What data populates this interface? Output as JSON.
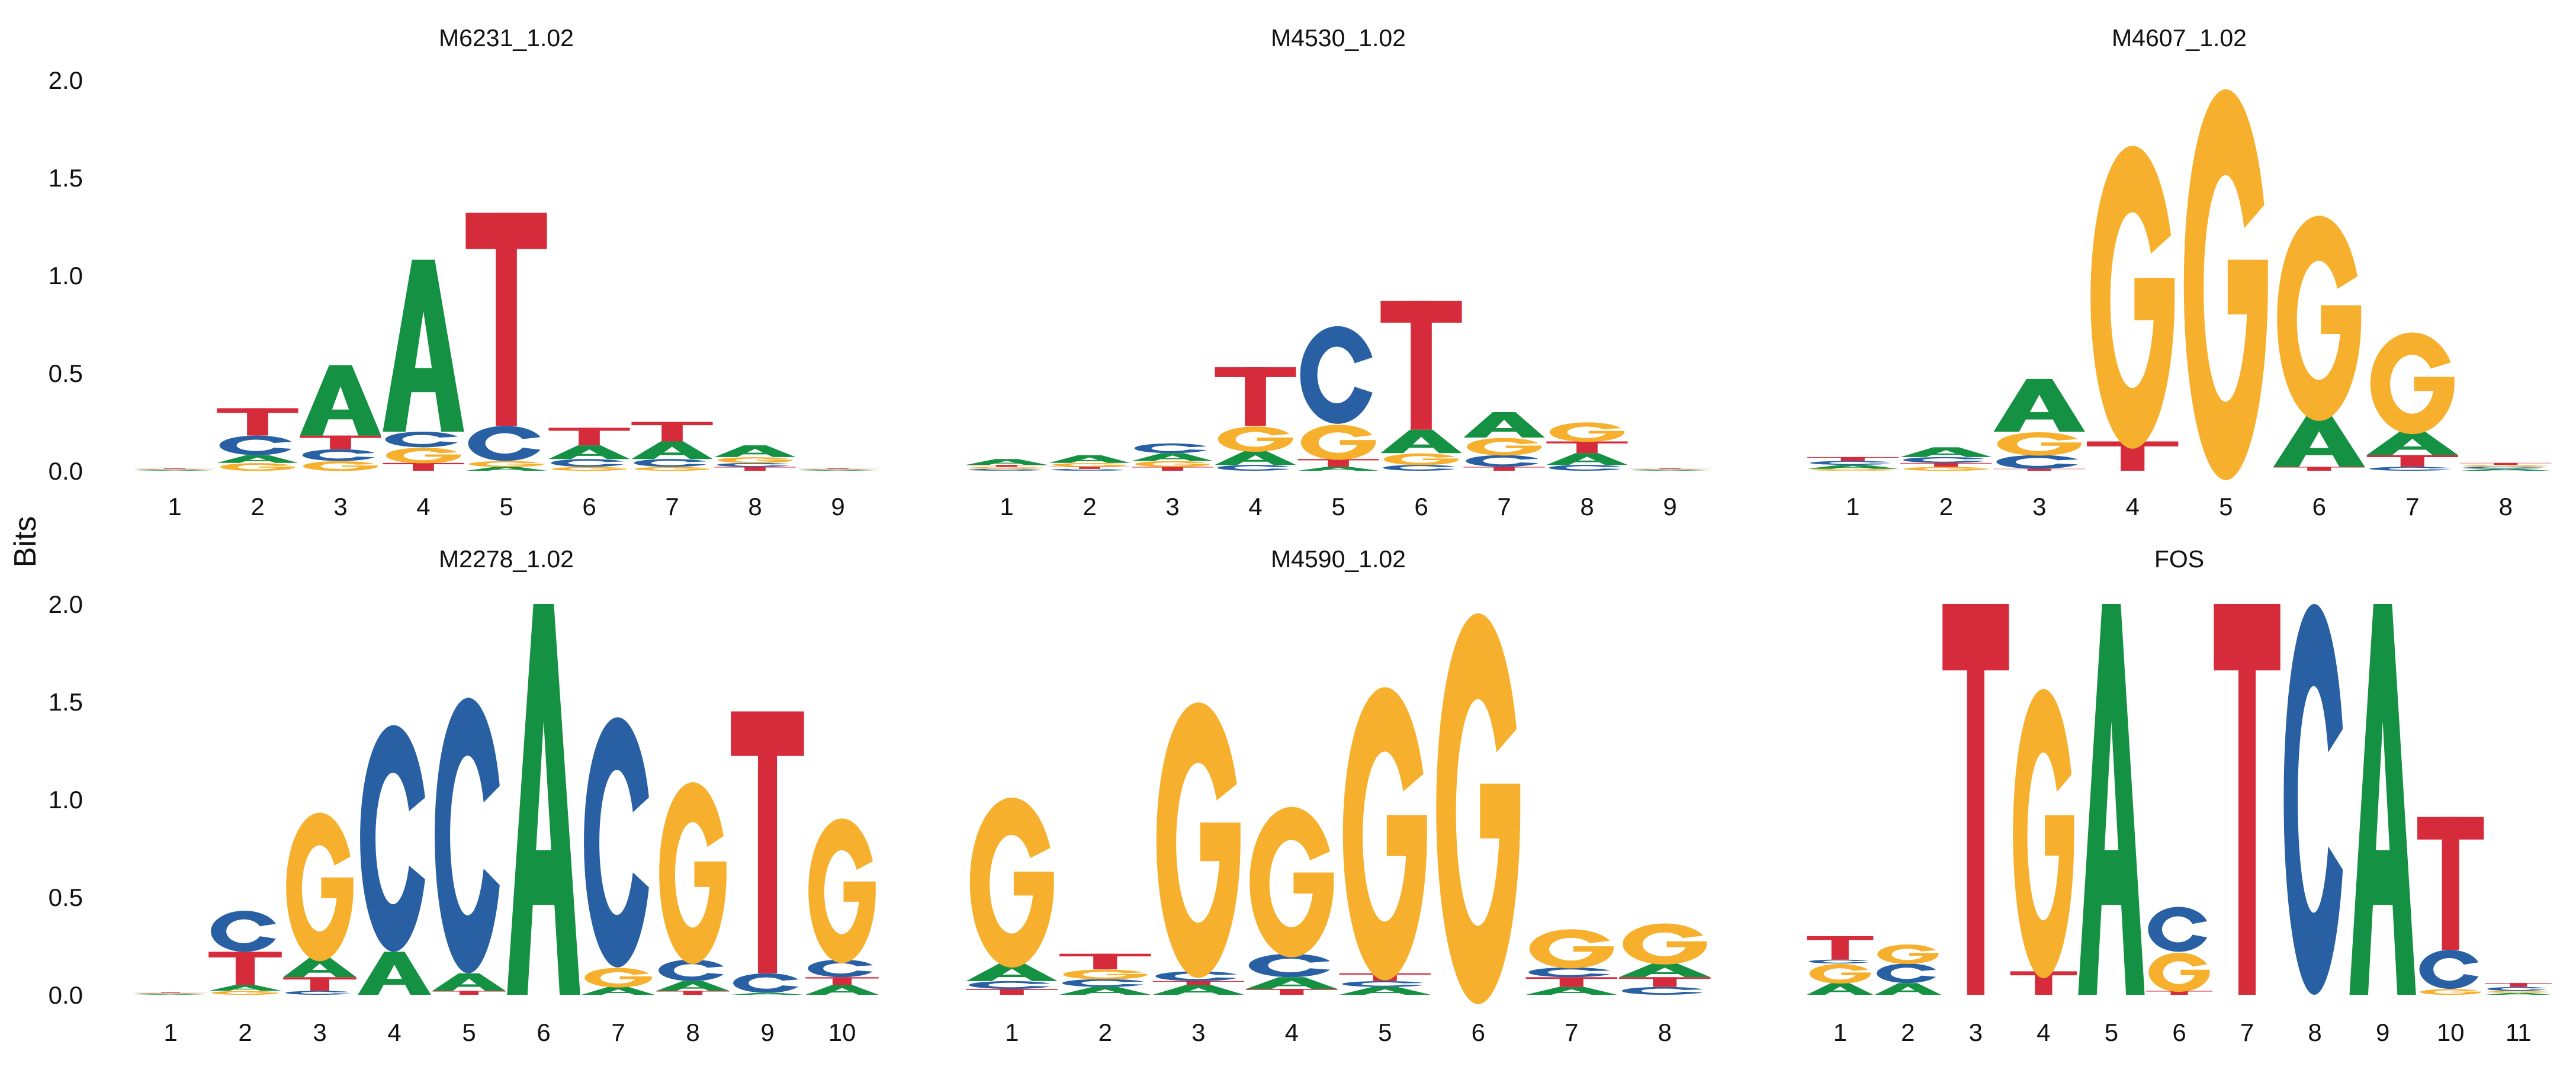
{
  "figure": {
    "ylabel": "Bits",
    "colors": {
      "A": "#149142",
      "C": "#2860A3",
      "G": "#F6B02E",
      "T": "#D62B3B"
    }
  },
  "chart_data": [
    {
      "type": "sequence-logo",
      "title": "M6231_1.02",
      "ylim": [
        0,
        2.0
      ],
      "yticks": [
        "0.0",
        "0.5",
        "1.0",
        "1.5",
        "2.0"
      ],
      "positions": [
        "1",
        "2",
        "3",
        "4",
        "5",
        "6",
        "7",
        "8",
        "9"
      ],
      "stacks": [
        [
          [
            "A",
            0.003
          ],
          [
            "C",
            0.003
          ],
          [
            "G",
            0.003
          ],
          [
            "T",
            0.003
          ]
        ],
        [
          [
            "G",
            0.04
          ],
          [
            "A",
            0.04
          ],
          [
            "C",
            0.1
          ],
          [
            "T",
            0.14
          ]
        ],
        [
          [
            "G",
            0.05
          ],
          [
            "C",
            0.06
          ],
          [
            "T",
            0.07
          ],
          [
            "A",
            0.36
          ]
        ],
        [
          [
            "T",
            0.04
          ],
          [
            "G",
            0.08
          ],
          [
            "C",
            0.08
          ],
          [
            "A",
            0.88
          ]
        ],
        [
          [
            "A",
            0.02
          ],
          [
            "G",
            0.03
          ],
          [
            "C",
            0.18
          ],
          [
            "T",
            1.09
          ]
        ],
        [
          [
            "G",
            0.02
          ],
          [
            "C",
            0.04
          ],
          [
            "A",
            0.07
          ],
          [
            "T",
            0.09
          ]
        ],
        [
          [
            "G",
            0.02
          ],
          [
            "C",
            0.04
          ],
          [
            "A",
            0.09
          ],
          [
            "T",
            0.1
          ]
        ],
        [
          [
            "T",
            0.02
          ],
          [
            "C",
            0.02
          ],
          [
            "G",
            0.03
          ],
          [
            "A",
            0.06
          ]
        ],
        [
          [
            "A",
            0.003
          ],
          [
            "C",
            0.003
          ],
          [
            "G",
            0.003
          ],
          [
            "T",
            0.003
          ]
        ]
      ]
    },
    {
      "type": "sequence-logo",
      "title": "M4530_1.02",
      "ylim": [
        0,
        2.0
      ],
      "yticks": [
        "0.0",
        "0.5",
        "1.0",
        "1.5",
        "2.0"
      ],
      "positions": [
        "1",
        "2",
        "3",
        "4",
        "5",
        "6",
        "7",
        "8",
        "9"
      ],
      "stacks": [
        [
          [
            "C",
            0.01
          ],
          [
            "G",
            0.01
          ],
          [
            "T",
            0.01
          ],
          [
            "A",
            0.03
          ]
        ],
        [
          [
            "C",
            0.01
          ],
          [
            "T",
            0.01
          ],
          [
            "G",
            0.02
          ],
          [
            "A",
            0.04
          ]
        ],
        [
          [
            "T",
            0.02
          ],
          [
            "G",
            0.03
          ],
          [
            "A",
            0.04
          ],
          [
            "C",
            0.05
          ]
        ],
        [
          [
            "C",
            0.03
          ],
          [
            "A",
            0.07
          ],
          [
            "G",
            0.13
          ],
          [
            "T",
            0.3
          ]
        ],
        [
          [
            "A",
            0.02
          ],
          [
            "T",
            0.04
          ],
          [
            "G",
            0.18
          ],
          [
            "C",
            0.5
          ]
        ],
        [
          [
            "C",
            0.03
          ],
          [
            "G",
            0.06
          ],
          [
            "A",
            0.12
          ],
          [
            "T",
            0.66
          ]
        ],
        [
          [
            "T",
            0.02
          ],
          [
            "C",
            0.06
          ],
          [
            "G",
            0.09
          ],
          [
            "A",
            0.13
          ]
        ],
        [
          [
            "C",
            0.03
          ],
          [
            "A",
            0.06
          ],
          [
            "T",
            0.06
          ],
          [
            "G",
            0.1
          ]
        ],
        [
          [
            "A",
            0.003
          ],
          [
            "C",
            0.003
          ],
          [
            "G",
            0.003
          ],
          [
            "T",
            0.003
          ]
        ]
      ]
    },
    {
      "type": "sequence-logo",
      "title": "M4607_1.02",
      "ylim": [
        0,
        2.0
      ],
      "yticks": [
        "0.0",
        "0.5",
        "1.0",
        "1.5",
        "2.0"
      ],
      "positions": [
        "1",
        "2",
        "3",
        "4",
        "5",
        "6",
        "7",
        "8"
      ],
      "stacks": [
        [
          [
            "G",
            0.01
          ],
          [
            "A",
            0.02
          ],
          [
            "C",
            0.02
          ],
          [
            "T",
            0.02
          ]
        ],
        [
          [
            "G",
            0.02
          ],
          [
            "T",
            0.02
          ],
          [
            "C",
            0.03
          ],
          [
            "A",
            0.05
          ]
        ],
        [
          [
            "T",
            0.01
          ],
          [
            "C",
            0.07
          ],
          [
            "G",
            0.12
          ],
          [
            "A",
            0.27
          ]
        ],
        [
          [
            "T",
            0.15
          ],
          [
            "G",
            1.55
          ]
        ],
        [
          [
            "G",
            2.0
          ]
        ],
        [
          [
            "T",
            0.02
          ],
          [
            "A",
            0.26
          ],
          [
            "G",
            1.05
          ]
        ],
        [
          [
            "C",
            0.02
          ],
          [
            "T",
            0.06
          ],
          [
            "A",
            0.12
          ],
          [
            "G",
            0.52
          ]
        ],
        [
          [
            "A",
            0.01
          ],
          [
            "C",
            0.01
          ],
          [
            "G",
            0.01
          ],
          [
            "T",
            0.01
          ]
        ]
      ]
    },
    {
      "type": "sequence-logo",
      "title": "M2278_1.02",
      "ylim": [
        0,
        2.0
      ],
      "yticks": [
        "0.0",
        "0.5",
        "1.0",
        "1.5",
        "2.0"
      ],
      "positions": [
        "1",
        "2",
        "3",
        "4",
        "5",
        "6",
        "7",
        "8",
        "9",
        "10"
      ],
      "stacks": [
        [
          [
            "A",
            0.003
          ],
          [
            "C",
            0.003
          ],
          [
            "G",
            0.003
          ],
          [
            "T",
            0.003
          ]
        ],
        [
          [
            "G",
            0.02
          ],
          [
            "A",
            0.03
          ],
          [
            "T",
            0.17
          ],
          [
            "C",
            0.21
          ]
        ],
        [
          [
            "C",
            0.02
          ],
          [
            "T",
            0.07
          ],
          [
            "A",
            0.1
          ],
          [
            "G",
            0.76
          ]
        ],
        [
          [
            "A",
            0.22
          ],
          [
            "C",
            1.16
          ]
        ],
        [
          [
            "T",
            0.02
          ],
          [
            "A",
            0.09
          ],
          [
            "C",
            1.41
          ]
        ],
        [
          [
            "A",
            2.0
          ]
        ],
        [
          [
            "A",
            0.04
          ],
          [
            "G",
            0.1
          ],
          [
            "C",
            1.28
          ]
        ],
        [
          [
            "T",
            0.02
          ],
          [
            "A",
            0.05
          ],
          [
            "C",
            0.11
          ],
          [
            "G",
            0.93
          ]
        ],
        [
          [
            "A",
            0.01
          ],
          [
            "C",
            0.1
          ],
          [
            "T",
            1.34
          ]
        ],
        [
          [
            "A",
            0.05
          ],
          [
            "T",
            0.04
          ],
          [
            "C",
            0.09
          ],
          [
            "G",
            0.74
          ]
        ]
      ]
    },
    {
      "type": "sequence-logo",
      "title": "M4590_1.02",
      "ylim": [
        0,
        2.0
      ],
      "yticks": [
        "0.0",
        "0.5",
        "1.0",
        "1.5",
        "2.0"
      ],
      "positions": [
        "1",
        "2",
        "3",
        "4",
        "5",
        "6",
        "7",
        "8"
      ],
      "stacks": [
        [
          [
            "T",
            0.03
          ],
          [
            "C",
            0.04
          ],
          [
            "A",
            0.09
          ],
          [
            "G",
            0.87
          ]
        ],
        [
          [
            "A",
            0.04
          ],
          [
            "C",
            0.04
          ],
          [
            "G",
            0.05
          ],
          [
            "T",
            0.08
          ]
        ],
        [
          [
            "A",
            0.05
          ],
          [
            "T",
            0.02
          ],
          [
            "C",
            0.05
          ],
          [
            "G",
            1.41
          ]
        ],
        [
          [
            "T",
            0.03
          ],
          [
            "A",
            0.06
          ],
          [
            "C",
            0.12
          ],
          [
            "G",
            0.77
          ]
        ],
        [
          [
            "A",
            0.04
          ],
          [
            "C",
            0.03
          ],
          [
            "T",
            0.04
          ],
          [
            "G",
            1.5
          ]
        ],
        [
          [
            "G",
            2.0
          ]
        ],
        [
          [
            "A",
            0.04
          ],
          [
            "T",
            0.05
          ],
          [
            "C",
            0.05
          ],
          [
            "G",
            0.2
          ]
        ],
        [
          [
            "C",
            0.04
          ],
          [
            "T",
            0.05
          ],
          [
            "A",
            0.07
          ],
          [
            "G",
            0.21
          ]
        ]
      ]
    },
    {
      "type": "sequence-logo",
      "title": "FOS",
      "ylim": [
        0,
        2.0
      ],
      "yticks": [
        "0.0",
        "0.5",
        "1.0",
        "1.5",
        "2.0"
      ],
      "positions": [
        "1",
        "2",
        "3",
        "4",
        "5",
        "6",
        "7",
        "8",
        "9",
        "10",
        "11"
      ],
      "stacks": [
        [
          [
            "A",
            0.06
          ],
          [
            "G",
            0.1
          ],
          [
            "C",
            0.02
          ],
          [
            "T",
            0.12
          ]
        ],
        [
          [
            "A",
            0.06
          ],
          [
            "C",
            0.1
          ],
          [
            "G",
            0.1
          ]
        ],
        [
          [
            "T",
            2.0
          ]
        ],
        [
          [
            "T",
            0.12
          ],
          [
            "G",
            1.48
          ]
        ],
        [
          [
            "A",
            2.0
          ]
        ],
        [
          [
            "T",
            0.02
          ],
          [
            "G",
            0.2
          ],
          [
            "C",
            0.23
          ]
        ],
        [
          [
            "T",
            2.0
          ]
        ],
        [
          [
            "C",
            2.0
          ]
        ],
        [
          [
            "A",
            2.0
          ]
        ],
        [
          [
            "G",
            0.03
          ],
          [
            "C",
            0.2
          ],
          [
            "T",
            0.68
          ]
        ],
        [
          [
            "A",
            0.01
          ],
          [
            "G",
            0.01
          ],
          [
            "C",
            0.02
          ],
          [
            "T",
            0.02
          ]
        ]
      ]
    }
  ]
}
